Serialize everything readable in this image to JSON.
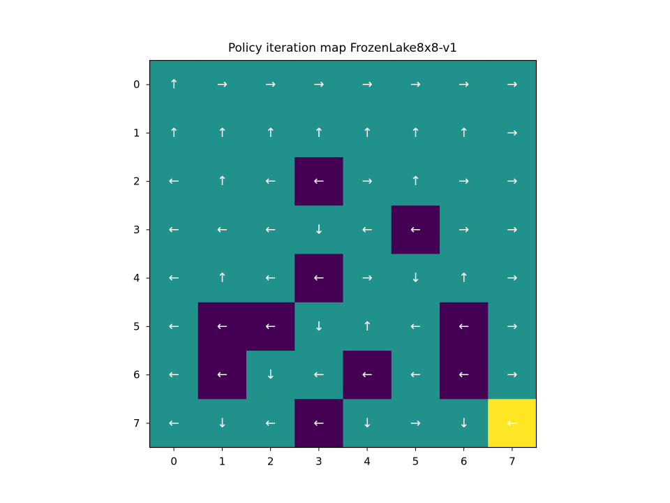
{
  "chart_data": {
    "type": "heatmap",
    "title": "Policy iteration map FrozenLake8x8-v1",
    "x_ticks": [
      "0",
      "1",
      "2",
      "3",
      "4",
      "5",
      "6",
      "7"
    ],
    "y_ticks": [
      "0",
      "1",
      "2",
      "3",
      "4",
      "5",
      "6",
      "7"
    ],
    "grid": false,
    "colormap": {
      "0": "#440154",
      "1": "#21918c",
      "2": "#fde725"
    },
    "values": [
      [
        1,
        1,
        1,
        1,
        1,
        1,
        1,
        1
      ],
      [
        1,
        1,
        1,
        1,
        1,
        1,
        1,
        1
      ],
      [
        1,
        1,
        1,
        0,
        1,
        1,
        1,
        1
      ],
      [
        1,
        1,
        1,
        1,
        1,
        0,
        1,
        1
      ],
      [
        1,
        1,
        1,
        0,
        1,
        1,
        1,
        1
      ],
      [
        1,
        0,
        0,
        1,
        1,
        1,
        0,
        1
      ],
      [
        1,
        0,
        1,
        1,
        0,
        1,
        0,
        1
      ],
      [
        1,
        1,
        1,
        0,
        1,
        1,
        1,
        2
      ]
    ],
    "arrows": [
      [
        "↑",
        "→",
        "→",
        "→",
        "→",
        "→",
        "→",
        "→"
      ],
      [
        "↑",
        "↑",
        "↑",
        "↑",
        "↑",
        "↑",
        "↑",
        "→"
      ],
      [
        "←",
        "↑",
        "←",
        "←",
        "→",
        "↑",
        "→",
        "→"
      ],
      [
        "←",
        "←",
        "←",
        "↓",
        "←",
        "←",
        "→",
        "→"
      ],
      [
        "←",
        "↑",
        "←",
        "←",
        "→",
        "↓",
        "↑",
        "→"
      ],
      [
        "←",
        "←",
        "←",
        "↓",
        "↑",
        "←",
        "←",
        "→"
      ],
      [
        "←",
        "←",
        "↓",
        "←",
        "←",
        "←",
        "←",
        "→"
      ],
      [
        "←",
        "↓",
        "←",
        "←",
        "↓",
        "→",
        "↓",
        "←"
      ]
    ]
  }
}
